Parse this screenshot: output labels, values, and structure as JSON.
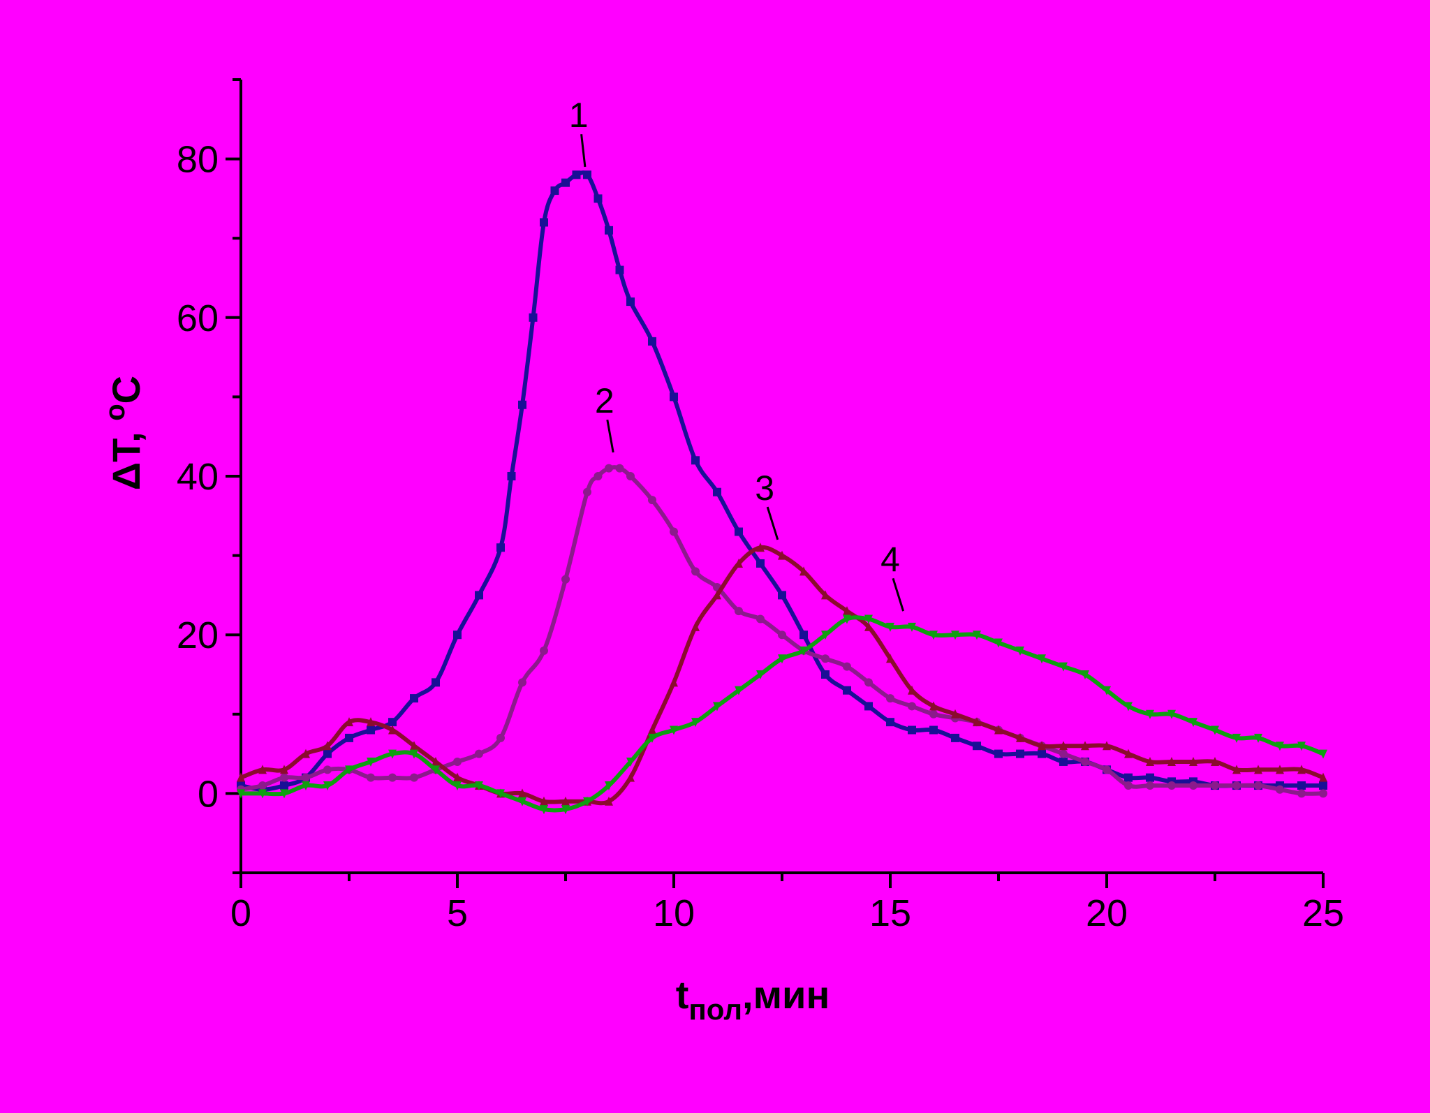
{
  "chart_data": {
    "type": "line",
    "title": "",
    "background": "#ff00ff",
    "xlabel": {
      "main": "t",
      "sub": "пол",
      "suffix": ",мин"
    },
    "ylabel": {
      "main": "ΔT, ",
      "sup": "o",
      "suffix": "C"
    },
    "xlim": [
      0,
      25
    ],
    "ylim": [
      -10,
      90
    ],
    "xticks": [
      0,
      5,
      10,
      15,
      20,
      25
    ],
    "yticks": [
      0,
      20,
      40,
      60,
      80
    ],
    "grid": false,
    "series": [
      {
        "label": "1",
        "color": "#1a0f96",
        "marker": "square",
        "label_at": [
          7.8,
          84
        ],
        "leader_end": [
          7.95,
          79
        ],
        "x": [
          0,
          0.5,
          1,
          1.5,
          2,
          2.5,
          3,
          3.5,
          4,
          4.5,
          5,
          5.5,
          6,
          6.25,
          6.5,
          6.75,
          7,
          7.25,
          7.5,
          7.75,
          8,
          8.25,
          8.5,
          8.75,
          9,
          9.5,
          10,
          10.5,
          11,
          11.5,
          12,
          12.5,
          13,
          13.5,
          14,
          14.5,
          15,
          15.5,
          16,
          16.5,
          17,
          17.5,
          18,
          18.5,
          19,
          19.5,
          20,
          20.5,
          21,
          21.5,
          22,
          22.5,
          23,
          23.5,
          24,
          24.5,
          25
        ],
        "y": [
          1,
          0.5,
          1,
          2,
          5,
          7,
          8,
          9,
          12,
          14,
          20,
          25,
          31,
          40,
          49,
          60,
          72,
          76,
          77,
          78,
          78,
          75,
          71,
          66,
          62,
          57,
          50,
          42,
          38,
          33,
          29,
          25,
          20,
          15,
          13,
          11,
          9,
          8,
          8,
          7,
          6,
          5,
          5,
          5,
          4,
          4,
          3,
          2,
          2,
          1.5,
          1.5,
          1,
          1,
          1,
          1,
          1,
          1
        ]
      },
      {
        "label": "2",
        "color": "#8c1a8c",
        "marker": "circle",
        "label_at": [
          8.4,
          48
        ],
        "leader_end": [
          8.6,
          43
        ],
        "x": [
          0,
          0.5,
          1,
          1.5,
          2,
          2.5,
          3,
          3.5,
          4,
          4.5,
          5,
          5.5,
          6,
          6.5,
          7,
          7.5,
          8,
          8.25,
          8.5,
          8.75,
          9,
          9.5,
          10,
          10.5,
          11,
          11.5,
          12,
          12.5,
          13,
          13.5,
          14,
          14.5,
          15,
          15.5,
          16,
          16.5,
          17,
          17.5,
          18,
          18.5,
          19,
          19.5,
          20,
          20.5,
          21,
          21.5,
          22,
          22.5,
          23,
          23.5,
          24,
          24.5,
          25
        ],
        "y": [
          0.5,
          1,
          2,
          2,
          3,
          3,
          2,
          2,
          2,
          3,
          4,
          5,
          7,
          14,
          18,
          27,
          38,
          40,
          41,
          41,
          40,
          37,
          33,
          28,
          26,
          23,
          22,
          20,
          18,
          17,
          16,
          14,
          12,
          11,
          10,
          9.5,
          9,
          8,
          7,
          6,
          5,
          4,
          3,
          1,
          1,
          1,
          1,
          1,
          1,
          1,
          0.5,
          0,
          0
        ]
      },
      {
        "label": "3",
        "color": "#8b0b2e",
        "marker": "triangle-up",
        "label_at": [
          12.1,
          37
        ],
        "leader_end": [
          12.4,
          32
        ],
        "x": [
          0,
          0.5,
          1,
          1.5,
          2,
          2.5,
          3,
          3.5,
          4,
          4.5,
          5,
          5.5,
          6,
          6.5,
          7,
          7.5,
          8,
          8.5,
          9,
          9.5,
          10,
          10.5,
          11,
          11.5,
          12,
          12.5,
          13,
          13.5,
          14,
          14.5,
          15,
          15.5,
          16,
          16.5,
          17,
          17.5,
          18,
          18.5,
          19,
          19.5,
          20,
          20.5,
          21,
          21.5,
          22,
          22.5,
          23,
          23.5,
          24,
          24.5,
          25
        ],
        "y": [
          2,
          3,
          3,
          5,
          6,
          9,
          9,
          8,
          6,
          4,
          2,
          1,
          0,
          0,
          -1,
          -1,
          -1,
          -1,
          2,
          8,
          14,
          21,
          25,
          29,
          31,
          30,
          28,
          25,
          23,
          21,
          17,
          13,
          11,
          10,
          9,
          8,
          7,
          6,
          6,
          6,
          6,
          5,
          4,
          4,
          4,
          4,
          3,
          3,
          3,
          3,
          2
        ]
      },
      {
        "label": "4",
        "color": "#0f9e10",
        "marker": "triangle-down",
        "label_at": [
          15,
          28
        ],
        "leader_end": [
          15.3,
          23
        ],
        "x": [
          0,
          0.5,
          1,
          1.5,
          2,
          2.5,
          3,
          3.5,
          4,
          4.5,
          5,
          5.5,
          6,
          6.5,
          7,
          7.5,
          8,
          8.5,
          9,
          9.5,
          10,
          10.5,
          11,
          11.5,
          12,
          12.5,
          13,
          13.5,
          14,
          14.5,
          15,
          15.5,
          16,
          16.5,
          17,
          17.5,
          18,
          18.5,
          19,
          19.5,
          20,
          20.5,
          21,
          21.5,
          22,
          22.5,
          23,
          23.5,
          24,
          24.5,
          25
        ],
        "y": [
          0,
          0,
          0,
          1,
          1,
          3,
          4,
          5,
          5,
          3,
          1,
          1,
          0,
          -1,
          -2,
          -2,
          -1,
          1,
          4,
          7,
          8,
          9,
          11,
          13,
          15,
          17,
          18,
          20,
          22,
          22,
          21,
          21,
          20,
          20,
          20,
          19,
          18,
          17,
          16,
          15,
          13,
          11,
          10,
          10,
          9,
          8,
          7,
          7,
          6,
          6,
          5
        ]
      }
    ]
  }
}
